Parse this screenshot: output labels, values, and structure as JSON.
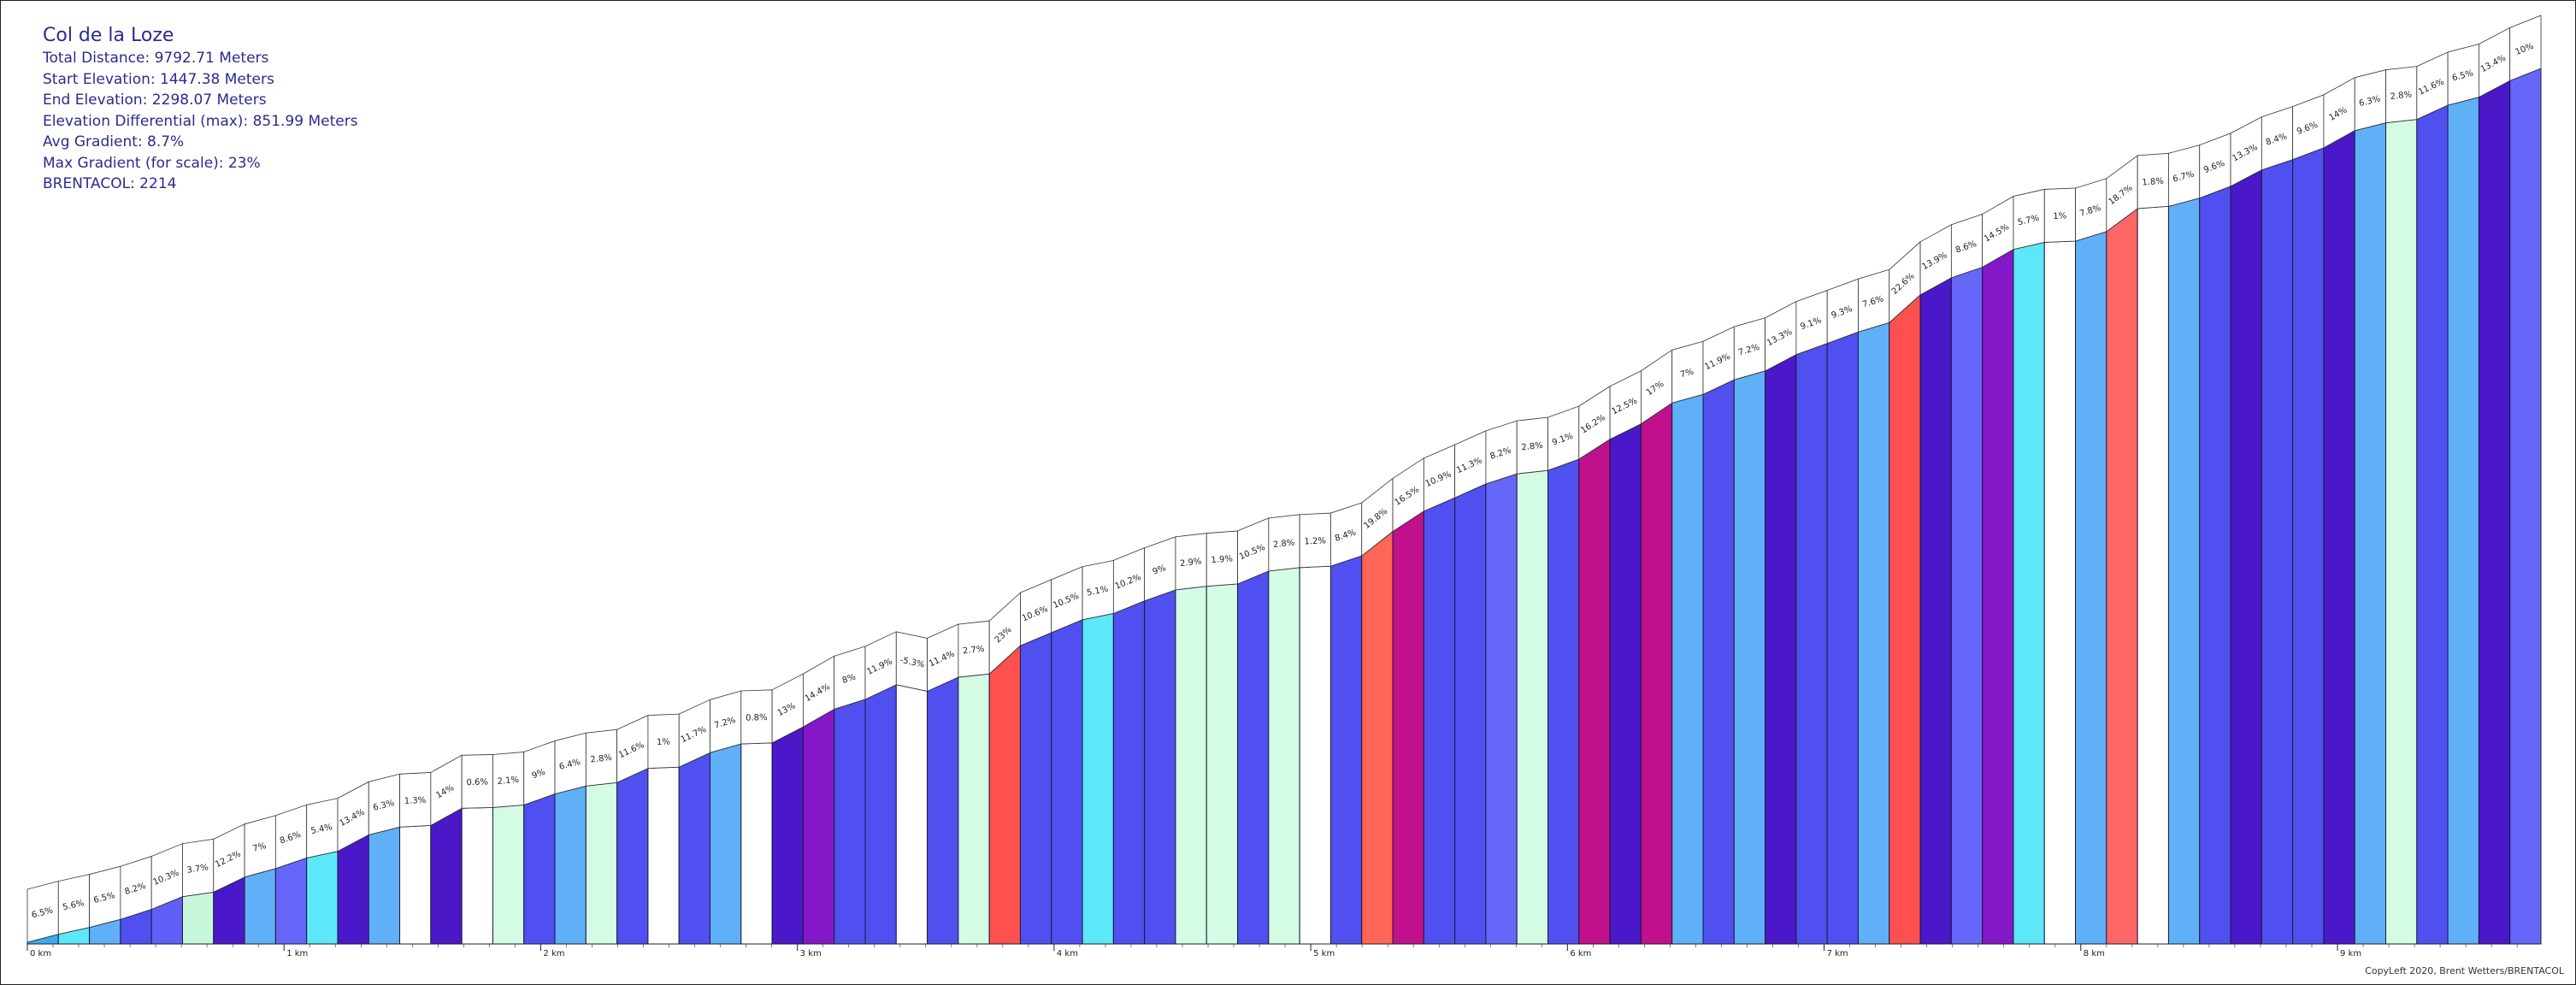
{
  "info": {
    "title": "Col de la Loze",
    "lines": [
      "Total Distance: 9792.71 Meters",
      "Start Elevation: 1447.38 Meters",
      "End Elevation: 2298.07 Meters",
      "Elevation Differential (max): 851.99 Meters",
      "Avg Gradient: 8.7%",
      "Max Gradient (for scale): 23%",
      "BRENTACOL: 2214"
    ]
  },
  "credit": "CopyLeft 2020, Brent Wetters/BRENTACOL",
  "chart_data": {
    "type": "area",
    "title": "Col de la Loze",
    "xlabel": "",
    "ylabel": "",
    "x_unit": "km",
    "xlim": [
      0,
      9.79271
    ],
    "ylim": [
      1447.38,
      2298.07
    ],
    "x_ticks": [
      "0 km",
      "1 km",
      "2 km",
      "3 km",
      "4 km",
      "5 km",
      "6 km",
      "7 km",
      "8 km",
      "9 km"
    ],
    "segments": [
      {
        "label": "6.5%",
        "grade": 6.5,
        "color": "#3da8f0"
      },
      {
        "label": "5.6%",
        "grade": 5.6,
        "color": "#5ce8f8"
      },
      {
        "label": "6.5%",
        "grade": 6.5,
        "color": "#60b0f8"
      },
      {
        "label": "8.2%",
        "grade": 8.2,
        "color": "#5050f0"
      },
      {
        "label": "10.3%",
        "grade": 10.3,
        "color": "#6060f8"
      },
      {
        "label": "3.7%",
        "grade": 3.7,
        "color": "#c8f8dc"
      },
      {
        "label": "12.2%",
        "grade": 12.2,
        "color": "#4a18c8"
      },
      {
        "label": "7%",
        "grade": 7,
        "color": "#60b0f8"
      },
      {
        "label": "8.6%",
        "grade": 8.6,
        "color": "#6666f8"
      },
      {
        "label": "5.4%",
        "grade": 5.4,
        "color": "#5ce8f8"
      },
      {
        "label": "13.4%",
        "grade": 13.4,
        "color": "#4a18c8"
      },
      {
        "label": "6.3%",
        "grade": 6.3,
        "color": "#60b0f8"
      },
      {
        "label": "1.3%",
        "grade": 1.3,
        "color": "#ffffff"
      },
      {
        "label": "14%",
        "grade": 14,
        "color": "#4a18c8"
      },
      {
        "label": "0.6%",
        "grade": 0.6,
        "color": "#ffffff"
      },
      {
        "label": "2.1%",
        "grade": 2.1,
        "color": "#d4fce4"
      },
      {
        "label": "9%",
        "grade": 9,
        "color": "#5050f0"
      },
      {
        "label": "6.4%",
        "grade": 6.4,
        "color": "#60b0f8"
      },
      {
        "label": "2.8%",
        "grade": 2.8,
        "color": "#d4fce4"
      },
      {
        "label": "11.6%",
        "grade": 11.6,
        "color": "#5050f0"
      },
      {
        "label": "1%",
        "grade": 1,
        "color": "#ffffff"
      },
      {
        "label": "11.7%",
        "grade": 11.7,
        "color": "#5050f0"
      },
      {
        "label": "7.2%",
        "grade": 7.2,
        "color": "#60b0f8"
      },
      {
        "label": "0.8%",
        "grade": 0.8,
        "color": "#ffffff"
      },
      {
        "label": "13%",
        "grade": 13,
        "color": "#4a18c8"
      },
      {
        "label": "14.4%",
        "grade": 14.4,
        "color": "#8418c8"
      },
      {
        "label": "8%",
        "grade": 8,
        "color": "#5050f0"
      },
      {
        "label": "11.9%",
        "grade": 11.9,
        "color": "#5050f0"
      },
      {
        "label": "-5.3%",
        "grade": -5.3,
        "color": "#ffffff"
      },
      {
        "label": "11.4%",
        "grade": 11.4,
        "color": "#5050f0"
      },
      {
        "label": "2.7%",
        "grade": 2.7,
        "color": "#d4fce4"
      },
      {
        "label": "23%",
        "grade": 23,
        "color": "#ff5050"
      },
      {
        "label": "10.6%",
        "grade": 10.6,
        "color": "#5050f0"
      },
      {
        "label": "10.5%",
        "grade": 10.5,
        "color": "#5050f0"
      },
      {
        "label": "5.1%",
        "grade": 5.1,
        "color": "#5ce8f8"
      },
      {
        "label": "10.2%",
        "grade": 10.2,
        "color": "#5050f0"
      },
      {
        "label": "9%",
        "grade": 9,
        "color": "#5050f0"
      },
      {
        "label": "2.9%",
        "grade": 2.9,
        "color": "#d4fce4"
      },
      {
        "label": "1.9%",
        "grade": 1.9,
        "color": "#d4fce4"
      },
      {
        "label": "10.5%",
        "grade": 10.5,
        "color": "#5050f0"
      },
      {
        "label": "2.8%",
        "grade": 2.8,
        "color": "#d4fce4"
      },
      {
        "label": "1.2%",
        "grade": 1.2,
        "color": "#ffffff"
      },
      {
        "label": "8.4%",
        "grade": 8.4,
        "color": "#5050f0"
      },
      {
        "label": "19.8%",
        "grade": 19.8,
        "color": "#ff6655"
      },
      {
        "label": "16.5%",
        "grade": 16.5,
        "color": "#c0108c"
      },
      {
        "label": "10.9%",
        "grade": 10.9,
        "color": "#5050f0"
      },
      {
        "label": "11.3%",
        "grade": 11.3,
        "color": "#5050f0"
      },
      {
        "label": "8.2%",
        "grade": 8.2,
        "color": "#6666f8"
      },
      {
        "label": "2.8%",
        "grade": 2.8,
        "color": "#d4fce4"
      },
      {
        "label": "9.1%",
        "grade": 9.1,
        "color": "#5050f0"
      },
      {
        "label": "16.2%",
        "grade": 16.2,
        "color": "#c0108c"
      },
      {
        "label": "12.5%",
        "grade": 12.5,
        "color": "#4a18c8"
      },
      {
        "label": "17%",
        "grade": 17,
        "color": "#c0108c"
      },
      {
        "label": "7%",
        "grade": 7,
        "color": "#60b0f8"
      },
      {
        "label": "11.9%",
        "grade": 11.9,
        "color": "#5050f0"
      },
      {
        "label": "7.2%",
        "grade": 7.2,
        "color": "#60b0f8"
      },
      {
        "label": "13.3%",
        "grade": 13.3,
        "color": "#4a18c8"
      },
      {
        "label": "9.1%",
        "grade": 9.1,
        "color": "#5050f0"
      },
      {
        "label": "9.3%",
        "grade": 9.3,
        "color": "#5050f0"
      },
      {
        "label": "7.6%",
        "grade": 7.6,
        "color": "#60b0f8"
      },
      {
        "label": "22.6%",
        "grade": 22.6,
        "color": "#ff5050"
      },
      {
        "label": "13.9%",
        "grade": 13.9,
        "color": "#4a18c8"
      },
      {
        "label": "8.6%",
        "grade": 8.6,
        "color": "#6666f8"
      },
      {
        "label": "14.5%",
        "grade": 14.5,
        "color": "#8418c8"
      },
      {
        "label": "5.7%",
        "grade": 5.7,
        "color": "#5ce8f8"
      },
      {
        "label": "1%",
        "grade": 1,
        "color": "#ffffff"
      },
      {
        "label": "7.8%",
        "grade": 7.8,
        "color": "#60b0f8"
      },
      {
        "label": "18.7%",
        "grade": 18.7,
        "color": "#ff6666"
      },
      {
        "label": "1.8%",
        "grade": 1.8,
        "color": "#ffffff"
      },
      {
        "label": "6.7%",
        "grade": 6.7,
        "color": "#60b0f8"
      },
      {
        "label": "9.6%",
        "grade": 9.6,
        "color": "#5050f0"
      },
      {
        "label": "13.3%",
        "grade": 13.3,
        "color": "#4a18c8"
      },
      {
        "label": "8.4%",
        "grade": 8.4,
        "color": "#5050f0"
      },
      {
        "label": "9.6%",
        "grade": 9.6,
        "color": "#5050f0"
      },
      {
        "label": "14%",
        "grade": 14,
        "color": "#4a18c8"
      },
      {
        "label": "6.3%",
        "grade": 6.3,
        "color": "#60b0f8"
      },
      {
        "label": "2.8%",
        "grade": 2.8,
        "color": "#d4fce4"
      },
      {
        "label": "11.6%",
        "grade": 11.6,
        "color": "#5050f0"
      },
      {
        "label": "6.5%",
        "grade": 6.5,
        "color": "#60b0f8"
      },
      {
        "label": "13.4%",
        "grade": 13.4,
        "color": "#4a18c8"
      },
      {
        "label": "10%",
        "grade": 10,
        "color": "#6666f8"
      }
    ]
  }
}
